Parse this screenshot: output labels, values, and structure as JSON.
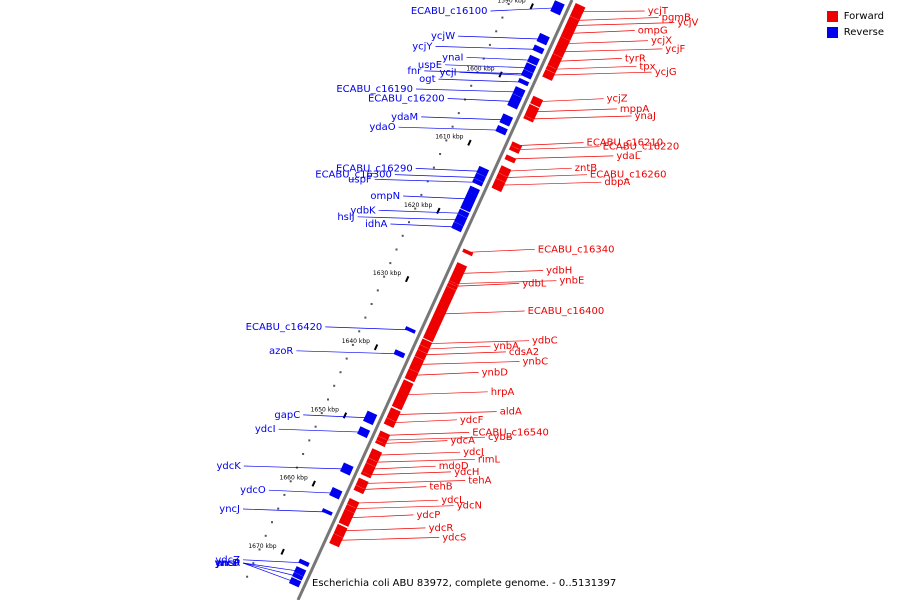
{
  "legend": {
    "forward_label": "Forward",
    "reverse_label": "Reverse",
    "forward_color": "#ee0000",
    "reverse_color": "#0000ee"
  },
  "caption": "Escherichia coli ABU 83972, complete genome. - 0..5131397",
  "axis": {
    "unit": "kbp",
    "ticks": [
      1590,
      1600,
      1610,
      1620,
      1630,
      1640,
      1650,
      1660,
      1670
    ],
    "tick_labels": [
      "1590 kbp",
      "1600 kbp",
      "1610 kbp",
      "1620 kbp",
      "1630 kbp",
      "1640 kbp",
      "1650 kbp",
      "1660 kbp",
      "1670 kbp"
    ]
  },
  "forward_genes": [
    {
      "name": "ycjT",
      "start": 1587.2,
      "end": 1589.0
    },
    {
      "name": "pgmB",
      "start": 1589.1,
      "end": 1589.7
    },
    {
      "name": "ycjV",
      "start": 1589.7,
      "end": 1590.6
    },
    {
      "name": "ompG",
      "start": 1590.6,
      "end": 1592.0
    },
    {
      "name": "ycjX",
      "start": 1592.1,
      "end": 1593.5
    },
    {
      "name": "ycjF",
      "start": 1593.5,
      "end": 1594.5
    },
    {
      "name": "tyrR",
      "start": 1594.6,
      "end": 1596.2
    },
    {
      "name": "tpx",
      "start": 1596.3,
      "end": 1596.8
    },
    {
      "name": "ycjG",
      "start": 1596.9,
      "end": 1597.9
    },
    {
      "name": "ycjZ",
      "start": 1600.8,
      "end": 1601.8
    },
    {
      "name": "mppA",
      "start": 1602.0,
      "end": 1603.6
    },
    {
      "name": "ynaJ",
      "start": 1603.7,
      "end": 1604.0
    },
    {
      "name": "ECABU_c16210",
      "start": 1607.5,
      "end": 1608.0
    },
    {
      "name": "ECABU_c16220",
      "start": 1608.1,
      "end": 1608.6
    },
    {
      "name": "ydaL",
      "start": 1609.4,
      "end": 1610.0
    },
    {
      "name": "zntB",
      "start": 1611.0,
      "end": 1612.0
    },
    {
      "name": "ECABU_c16260",
      "start": 1612.1,
      "end": 1612.8
    },
    {
      "name": "dbpA",
      "start": 1612.9,
      "end": 1614.2
    },
    {
      "name": "ECABU_c16340",
      "start": 1623.2,
      "end": 1623.6
    },
    {
      "name": "ydbH",
      "start": 1625.2,
      "end": 1627.8
    },
    {
      "name": "ynbE",
      "start": 1627.9,
      "end": 1628.1
    },
    {
      "name": "ydbL",
      "start": 1628.2,
      "end": 1628.6
    },
    {
      "name": "ECABU_c16400",
      "start": 1628.7,
      "end": 1636.2
    },
    {
      "name": "ydbC",
      "start": 1636.4,
      "end": 1637.2
    },
    {
      "name": "ynbA",
      "start": 1637.3,
      "end": 1637.9
    },
    {
      "name": "cdsA2",
      "start": 1638.0,
      "end": 1638.9
    },
    {
      "name": "ynbC",
      "start": 1639.0,
      "end": 1640.7
    },
    {
      "name": "ynbD",
      "start": 1640.8,
      "end": 1642.1
    },
    {
      "name": "hrpA",
      "start": 1642.4,
      "end": 1646.2
    },
    {
      "name": "aldA",
      "start": 1646.5,
      "end": 1647.9
    },
    {
      "name": "ydcF",
      "start": 1648.0,
      "end": 1648.8
    },
    {
      "name": "ECABU_c16540",
      "start": 1649.9,
      "end": 1650.6
    },
    {
      "name": "cybB",
      "start": 1650.7,
      "end": 1651.2
    },
    {
      "name": "ydcA",
      "start": 1651.3,
      "end": 1651.6
    },
    {
      "name": "ydcJ",
      "start": 1652.5,
      "end": 1653.8
    },
    {
      "name": "rimL",
      "start": 1653.9,
      "end": 1654.5
    },
    {
      "name": "mdoD",
      "start": 1654.6,
      "end": 1655.8
    },
    {
      "name": "ydcH",
      "start": 1655.9,
      "end": 1656.2
    },
    {
      "name": "tehA",
      "start": 1656.8,
      "end": 1657.8
    },
    {
      "name": "tehB",
      "start": 1657.9,
      "end": 1658.5
    },
    {
      "name": "ydcL",
      "start": 1659.8,
      "end": 1660.6
    },
    {
      "name": "ydcN",
      "start": 1660.7,
      "end": 1661.3
    },
    {
      "name": "ydcP",
      "start": 1661.4,
      "end": 1663.3
    },
    {
      "name": "ydcR",
      "start": 1663.6,
      "end": 1664.9
    },
    {
      "name": "ydcS",
      "start": 1665.0,
      "end": 1666.3
    }
  ],
  "reverse_genes": [
    {
      "name": "ECABU_c16100",
      "start": 1588.0,
      "end": 1589.5
    },
    {
      "name": "ycjW",
      "start": 1592.8,
      "end": 1593.9
    },
    {
      "name": "ycjY",
      "start": 1594.5,
      "end": 1595.2
    },
    {
      "name": "ynaI",
      "start": 1596.0,
      "end": 1596.9
    },
    {
      "name": "uspE",
      "start": 1597.1,
      "end": 1598.0
    },
    {
      "name": "fnr",
      "start": 1598.1,
      "end": 1598.8
    },
    {
      "name": "ycjI",
      "start": 1598.4,
      "end": 1598.9
    },
    {
      "name": "ogt",
      "start": 1599.4,
      "end": 1599.9
    },
    {
      "name": "ECABU_c16190",
      "start": 1600.6,
      "end": 1601.6
    },
    {
      "name": "ECABU_c16200",
      "start": 1601.7,
      "end": 1603.3
    },
    {
      "name": "ydaM",
      "start": 1604.6,
      "end": 1605.8
    },
    {
      "name": "ydaO",
      "start": 1606.3,
      "end": 1607.1
    },
    {
      "name": "ECABU_c16290",
      "start": 1612.3,
      "end": 1613.2
    },
    {
      "name": "ECABU_c16300",
      "start": 1613.3,
      "end": 1614.0
    },
    {
      "name": "uspF",
      "start": 1614.1,
      "end": 1614.6
    },
    {
      "name": "ompN",
      "start": 1615.2,
      "end": 1618.4
    },
    {
      "name": "ydbK",
      "start": 1618.6,
      "end": 1619.2
    },
    {
      "name": "hslJ",
      "start": 1619.3,
      "end": 1620.4
    },
    {
      "name": "idhA",
      "start": 1620.5,
      "end": 1621.3
    },
    {
      "name": "ECABU_c16420",
      "start": 1635.8,
      "end": 1636.2
    },
    {
      "name": "azoR",
      "start": 1639.2,
      "end": 1639.8
    },
    {
      "name": "gapC",
      "start": 1648.2,
      "end": 1649.6
    },
    {
      "name": "ydcI",
      "start": 1650.5,
      "end": 1651.5
    },
    {
      "name": "ydcK",
      "start": 1655.8,
      "end": 1657.0
    },
    {
      "name": "ydcO",
      "start": 1659.4,
      "end": 1660.5
    },
    {
      "name": "yncJ",
      "start": 1662.5,
      "end": 1662.9
    },
    {
      "name": "ydcZ",
      "start": 1669.9,
      "end": 1670.4
    },
    {
      "name": "yncA",
      "start": 1671.0,
      "end": 1671.8
    },
    {
      "name": "yncD",
      "start": 1671.9,
      "end": 1672.4
    },
    {
      "name": "ansP",
      "start": 1672.6,
      "end": 1673.4
    }
  ]
}
